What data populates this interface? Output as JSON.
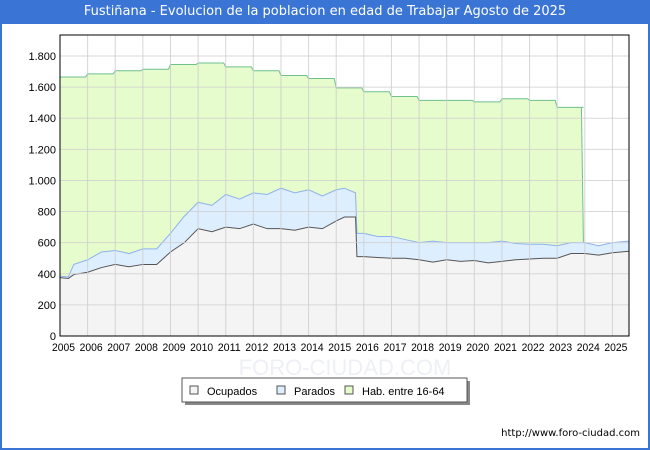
{
  "title": "Fustiñana - Evolucion de la poblacion en edad de Trabajar Agosto de 2025",
  "watermark": "FORO-CIUDAD.COM",
  "url": "http://www.foro-ciudad.com",
  "colors": {
    "ocupados": "#f4f4f4",
    "parados": "#ddeeff",
    "hab": "#e6fccc",
    "hab_line": "#6fbf8f",
    "par_line": "#8db2ee",
    "ocu_line": "#555555"
  },
  "chart_data": {
    "type": "area",
    "title": "Fustiñana - Evolucion de la poblacion en edad de Trabajar Agosto de 2025",
    "xlabel": "",
    "ylabel": "",
    "ylim": [
      0,
      1935
    ],
    "xlim": [
      2005,
      2025.6
    ],
    "yticks": [
      0,
      200,
      400,
      600,
      800,
      1000,
      1200,
      1400,
      1600,
      1800
    ],
    "ytick_labels": [
      "0",
      "200",
      "400",
      "600",
      "800",
      "1.000",
      "1.200",
      "1.400",
      "1.600",
      "1.800"
    ],
    "xticks": [
      "2005",
      "2006",
      "2007",
      "2008",
      "2009",
      "2010",
      "2011",
      "2012",
      "2013",
      "2014",
      "2015",
      "2016",
      "2017",
      "2018",
      "2019",
      "2020",
      "2021",
      "2022",
      "2023",
      "2024",
      "2025"
    ],
    "legend": [
      "Ocupados",
      "Parados",
      "Hab. entre 16-64"
    ],
    "legend_position": "bottom",
    "series": [
      {
        "name": "Hab. entre 16-64",
        "x": [
          2005,
          2006,
          2007,
          2008,
          2009,
          2010,
          2011,
          2012,
          2013,
          2014,
          2015,
          2016,
          2017,
          2018,
          2019,
          2020,
          2021,
          2022,
          2023,
          2023.95
        ],
        "values": [
          1665,
          1685,
          1705,
          1715,
          1745,
          1755,
          1730,
          1705,
          1675,
          1655,
          1595,
          1570,
          1540,
          1515,
          1515,
          1505,
          1525,
          1515,
          1470,
          1470
        ]
      },
      {
        "name": "Ocupados+Parados",
        "x": [
          2005,
          2005.3,
          2005.5,
          2006,
          2006.5,
          2007,
          2007.5,
          2008,
          2008.5,
          2009,
          2009.5,
          2010,
          2010.5,
          2011,
          2011.5,
          2012,
          2012.5,
          2013,
          2013.5,
          2014,
          2014.5,
          2015,
          2015.3,
          2015.7,
          2015.75,
          2016,
          2016.5,
          2017,
          2017.5,
          2018,
          2018.5,
          2019,
          2019.5,
          2020,
          2020.5,
          2021,
          2021.5,
          2022,
          2022.5,
          2023,
          2023.5,
          2024,
          2024.5,
          2025,
          2025.6
        ],
        "values": [
          385,
          380,
          460,
          490,
          540,
          550,
          530,
          560,
          560,
          660,
          770,
          860,
          840,
          910,
          880,
          920,
          910,
          950,
          920,
          940,
          900,
          940,
          950,
          920,
          660,
          660,
          640,
          640,
          620,
          600,
          610,
          600,
          600,
          600,
          600,
          610,
          595,
          590,
          590,
          580,
          600,
          600,
          580,
          600,
          610
        ]
      },
      {
        "name": "Ocupados",
        "x": [
          2005,
          2005.3,
          2005.5,
          2006,
          2006.5,
          2007,
          2007.5,
          2008,
          2008.5,
          2009,
          2009.5,
          2010,
          2010.5,
          2011,
          2011.5,
          2012,
          2012.5,
          2013,
          2013.5,
          2014,
          2014.5,
          2015,
          2015.3,
          2015.7,
          2015.75,
          2016,
          2016.5,
          2017,
          2017.5,
          2018,
          2018.5,
          2019,
          2019.5,
          2020,
          2020.5,
          2021,
          2021.5,
          2022,
          2022.5,
          2023,
          2023.5,
          2024,
          2024.5,
          2025,
          2025.6
        ],
        "values": [
          375,
          370,
          395,
          410,
          440,
          460,
          445,
          460,
          460,
          540,
          600,
          690,
          670,
          700,
          690,
          720,
          690,
          690,
          680,
          700,
          690,
          740,
          765,
          765,
          510,
          510,
          505,
          500,
          500,
          490,
          475,
          490,
          480,
          485,
          470,
          480,
          490,
          495,
          500,
          500,
          530,
          530,
          520,
          535,
          545
        ]
      }
    ]
  }
}
